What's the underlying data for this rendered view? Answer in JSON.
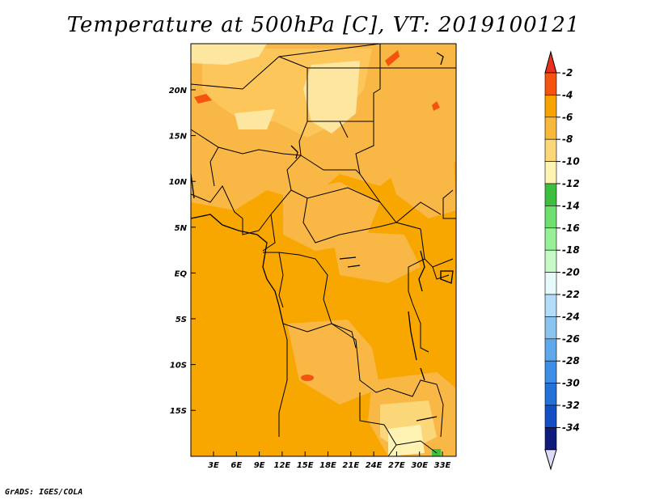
{
  "title": "Temperature at 500hPa [C], VT: 2019100121",
  "credit": "GrADS: IGES/COLA",
  "map": {
    "lat_labels": [
      "20N",
      "15N",
      "10N",
      "5N",
      "EQ",
      "5S",
      "10S",
      "15S"
    ],
    "lon_labels": [
      "3E",
      "6E",
      "9E",
      "12E",
      "15E",
      "18E",
      "21E",
      "24E",
      "27E",
      "30E",
      "33E"
    ]
  },
  "colorbar": {
    "labels": [
      "-2",
      "-4",
      "-6",
      "-8",
      "-10",
      "-12",
      "-14",
      "-16",
      "-18",
      "-20",
      "-22",
      "-24",
      "-26",
      "-28",
      "-30",
      "-32",
      "-34"
    ],
    "colors": [
      "#f4540f",
      "#f7a300",
      "#f8b83a",
      "#fcd77a",
      "#fff3b4",
      "#3fbf3f",
      "#6fdf6f",
      "#97ef97",
      "#c8fac8",
      "#e6fafa",
      "#b2dcf7",
      "#89c4f0",
      "#5ea8eb",
      "#3c8ee6",
      "#2471d8",
      "#1450c4",
      "#101c7c"
    ],
    "top_color": "#e8321e",
    "bottom_color": "#dcdcf8"
  }
}
